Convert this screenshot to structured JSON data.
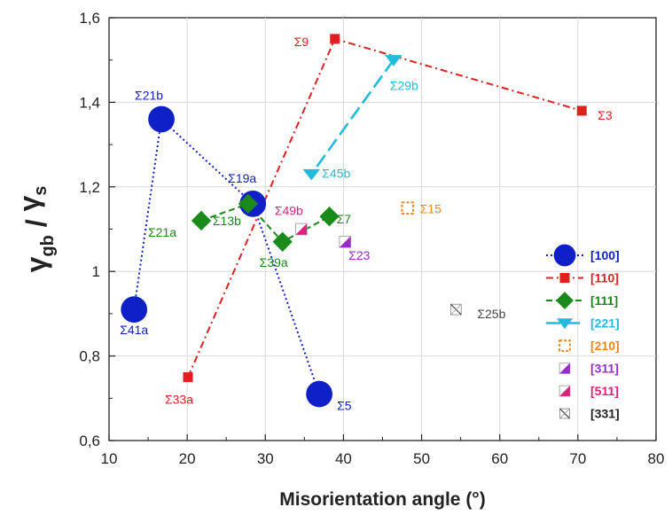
{
  "chart_data": {
    "type": "scatter",
    "xlabel": "Misorientation angle (°)",
    "ylabel_main": "γ",
    "ylabel_sub1": "gb",
    "ylabel_sep": " / ",
    "ylabel_main2": "γ",
    "ylabel_sub2": "s",
    "xlim": [
      10,
      80
    ],
    "ylim": [
      0.6,
      1.6
    ],
    "xticks": [
      {
        "v": 10,
        "label": "10"
      },
      {
        "v": 20,
        "label": "20"
      },
      {
        "v": 30,
        "label": "30"
      },
      {
        "v": 40,
        "label": "40"
      },
      {
        "v": 50,
        "label": "50"
      },
      {
        "v": 60,
        "label": "60"
      },
      {
        "v": 70,
        "label": "70"
      },
      {
        "v": 80,
        "label": "80"
      }
    ],
    "yticks": [
      {
        "v": 0.6,
        "label": "0,6"
      },
      {
        "v": 0.8,
        "label": "0,8"
      },
      {
        "v": 1.0,
        "label": "1"
      },
      {
        "v": 1.2,
        "label": "1,2"
      },
      {
        "v": 1.4,
        "label": "1,4"
      },
      {
        "v": 1.6,
        "label": "1,6"
      }
    ],
    "grid": true,
    "legend_position": "right",
    "series": [
      {
        "name": "[100]",
        "color": "#1020c8",
        "marker": "circle",
        "line": "dotted",
        "points": [
          {
            "x": 13.2,
            "y": 0.91,
            "label": "Σ41a"
          },
          {
            "x": 16.7,
            "y": 1.36,
            "label": "Σ21b"
          },
          {
            "x": 28.4,
            "y": 1.16,
            "label": "Σ19a"
          },
          {
            "x": 36.9,
            "y": 0.71,
            "label": "Σ5"
          }
        ]
      },
      {
        "name": "[110]",
        "color": "#e02020",
        "marker": "square",
        "line": "dashdot",
        "points": [
          {
            "x": 20.1,
            "y": 0.75,
            "label": "Σ33a"
          },
          {
            "x": 38.9,
            "y": 1.55,
            "label": "Σ9"
          },
          {
            "x": 70.5,
            "y": 1.38,
            "label": "Σ3"
          }
        ]
      },
      {
        "name": "[111]",
        "color": "#1a8a1a",
        "marker": "diamond",
        "line": "dashed",
        "points": [
          {
            "x": 21.8,
            "y": 1.12,
            "label": "Σ21a"
          },
          {
            "x": 27.8,
            "y": 1.16,
            "label": "Σ13b"
          },
          {
            "x": 32.2,
            "y": 1.07,
            "label": "Σ39a"
          },
          {
            "x": 38.2,
            "y": 1.13,
            "label": "Σ7"
          }
        ]
      },
      {
        "name": "[221]",
        "color": "#22bbdd",
        "marker": "triangle",
        "line": "longdash",
        "points": [
          {
            "x": 46.4,
            "y": 1.5,
            "label": "Σ29b"
          },
          {
            "x": 35.9,
            "y": 1.23,
            "label": "Σ45b"
          }
        ]
      },
      {
        "name": "[210]",
        "color": "#e88a20",
        "marker": "hollow-square",
        "line": "none",
        "points": [
          {
            "x": 48.2,
            "y": 1.15,
            "label": "Σ15"
          }
        ]
      },
      {
        "name": "[311]",
        "color": "#9a2ad0",
        "marker": "half-square",
        "line": "none",
        "points": [
          {
            "x": 40.2,
            "y": 1.07,
            "label": "Σ23"
          }
        ]
      },
      {
        "name": "[511]",
        "color": "#e0207a",
        "marker": "half-square",
        "line": "none",
        "points": [
          {
            "x": 34.6,
            "y": 1.1,
            "label": "Σ49b"
          }
        ]
      },
      {
        "name": "[331]",
        "color": "#444444",
        "marker": "cross-square",
        "line": "none",
        "points": [
          {
            "x": 54.4,
            "y": 0.91,
            "label": "Σ25b"
          }
        ]
      }
    ]
  }
}
